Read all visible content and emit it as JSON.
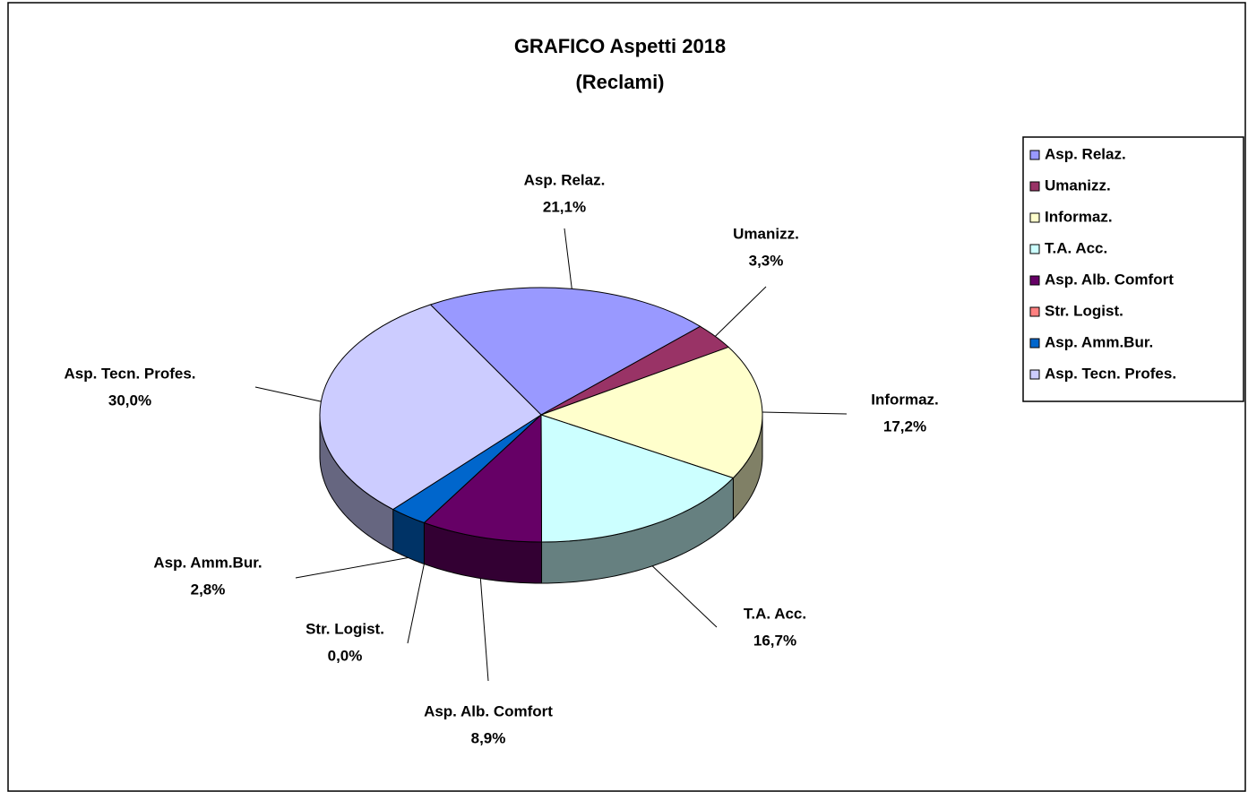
{
  "chart_data": {
    "type": "pie",
    "title": "GRAFICO Aspetti 2018",
    "subtitle": "(Reclami)",
    "categories": [
      "Asp. Relaz.",
      "Umanizz.",
      "Informaz.",
      "T.A. Acc.",
      "Asp. Alb. Comfort",
      "Str. Logist.",
      "Asp. Amm.Bur.",
      "Asp. Tecn. Profes."
    ],
    "values": [
      21.1,
      3.3,
      17.2,
      16.7,
      8.9,
      0.0,
      2.8,
      30.0
    ],
    "value_labels": [
      "21,1%",
      "3,3%",
      "17,2%",
      "16,7%",
      "8,9%",
      "0,0%",
      "2,8%",
      "30,0%"
    ],
    "colors": [
      "#9999ff",
      "#993366",
      "#ffffcc",
      "#ccffff",
      "#660066",
      "#ff8080",
      "#0066cc",
      "#ccccff"
    ],
    "legend": "right"
  }
}
